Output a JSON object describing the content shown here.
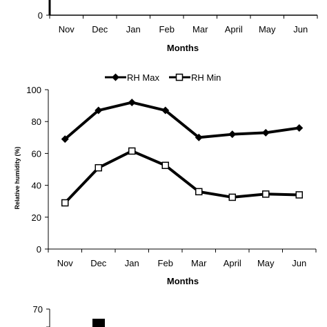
{
  "chart_data": [
    {
      "type": "line",
      "categories": [
        "Nov",
        "Dec",
        "Jan",
        "Feb",
        "Mar",
        "April",
        "May",
        "Jun"
      ],
      "y_tick_labels": [
        "0"
      ],
      "xlabel": "Months",
      "series": []
    },
    {
      "type": "line",
      "categories": [
        "Nov",
        "Dec",
        "Jan",
        "Feb",
        "Mar",
        "April",
        "May",
        "Jun"
      ],
      "xlabel": "Months",
      "ylabel": "Relative humidity (%)",
      "ylim": [
        0,
        100
      ],
      "y_ticks": [
        0,
        20,
        40,
        60,
        80,
        100
      ],
      "legend_placement": "top",
      "series": [
        {
          "name": "RH Max",
          "marker": "diamond",
          "values": [
            69,
            87,
            92,
            87,
            70,
            72,
            73,
            76
          ]
        },
        {
          "name": "RH Min",
          "marker": "open-square",
          "values": [
            29,
            51,
            61.5,
            52.5,
            36,
            32.5,
            34.5,
            34
          ]
        }
      ]
    },
    {
      "type": "bar",
      "y_tick_labels": [
        "70"
      ],
      "series": []
    }
  ]
}
